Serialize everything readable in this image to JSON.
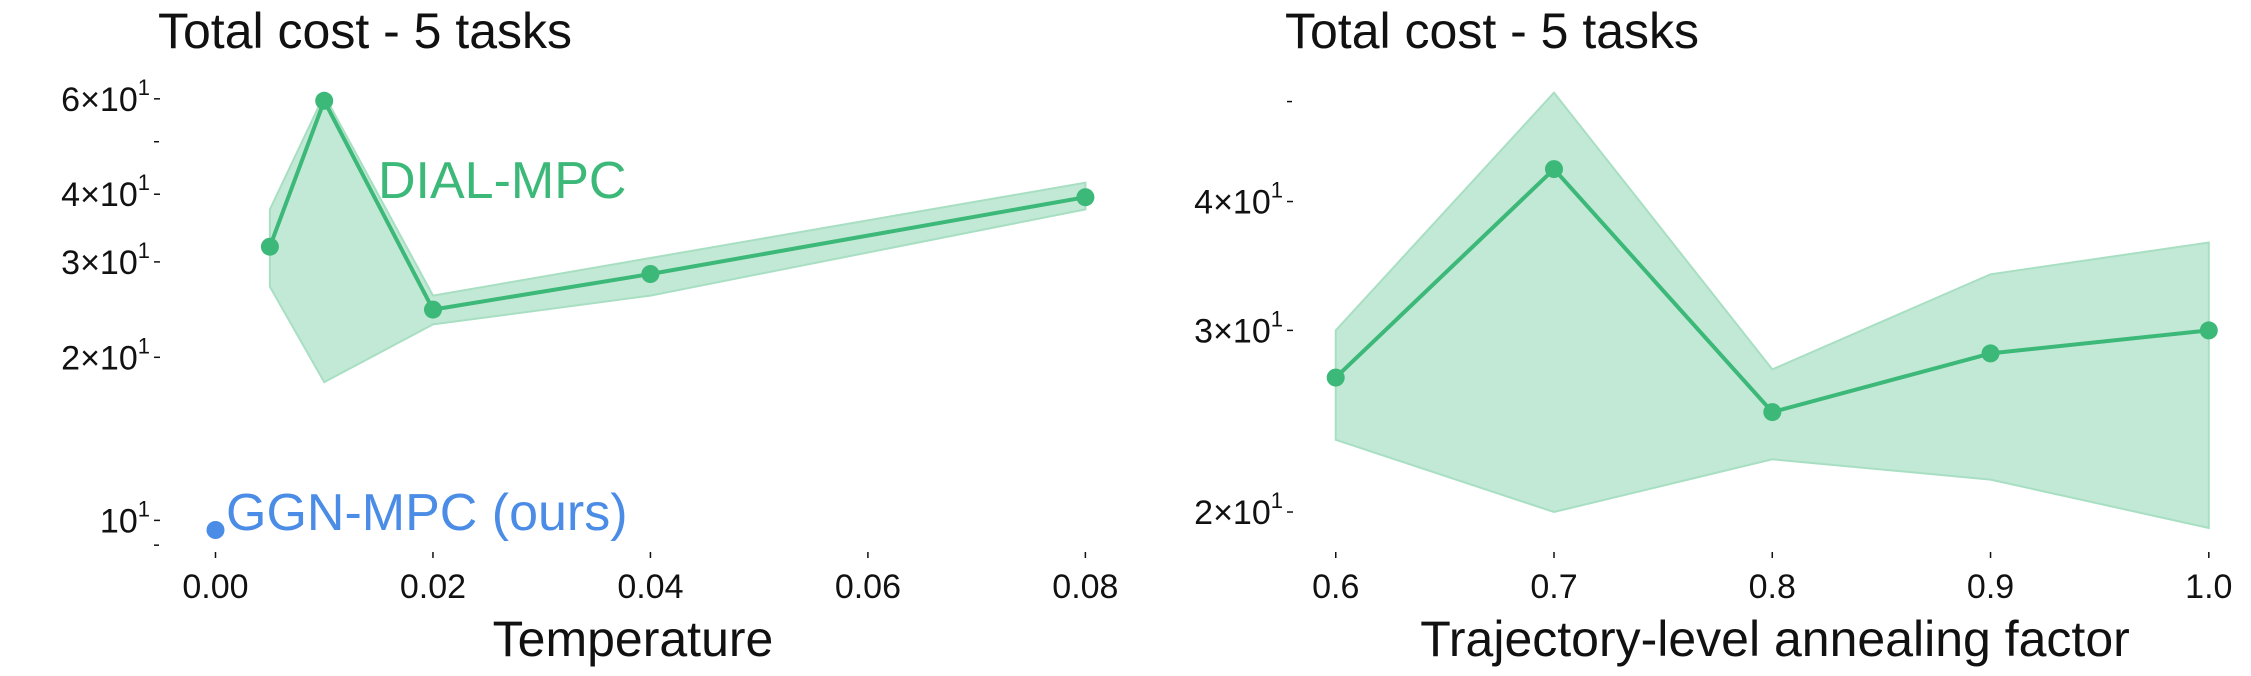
{
  "colors": {
    "dial": "#3cb878",
    "dial_band": "#a8dfc3",
    "ggn": "#4a8ce6",
    "text": "#111111"
  },
  "chart_data": [
    {
      "type": "line",
      "title": "Total cost - 5 tasks",
      "xlabel": "Temperature",
      "ylabel": "",
      "yscale": "log",
      "xlim": [
        -0.004,
        0.083
      ],
      "ylim": [
        9.2,
        65
      ],
      "grid": false,
      "xticks": [
        0.0,
        0.02,
        0.04,
        0.06,
        0.08
      ],
      "xtick_labels": [
        "0.00",
        "0.02",
        "0.04",
        "0.06",
        "0.08"
      ],
      "yticks": [
        {
          "value": 60,
          "mantissa": "6",
          "exp": "1"
        },
        {
          "value": 40,
          "mantissa": "4",
          "exp": "1"
        },
        {
          "value": 30,
          "mantissa": "3",
          "exp": "1"
        },
        {
          "value": 20,
          "mantissa": "2",
          "exp": "1"
        },
        {
          "value": 10,
          "mantissa": "",
          "exp": "1"
        }
      ],
      "yminor_unlabeled": [
        50,
        9
      ],
      "series": [
        {
          "name": "DIAL-MPC",
          "x": [
            0.005,
            0.01,
            0.02,
            0.04,
            0.08
          ],
          "y": [
            32,
            59.5,
            24.5,
            28.5,
            39.5
          ],
          "lower": [
            27,
            18,
            23,
            26,
            37.5
          ],
          "upper": [
            37.5,
            61,
            26,
            30.5,
            42
          ],
          "color": "#3cb878"
        },
        {
          "name": "GGN-MPC (ours)",
          "x": [
            0.0
          ],
          "y": [
            9.6
          ],
          "color": "#4a8ce6"
        }
      ],
      "annotations": [
        "DIAL-MPC",
        "GGN-MPC (ours)"
      ]
    },
    {
      "type": "line",
      "title": "Total cost - 5 tasks",
      "xlabel": "Trajectory-level annealing factor",
      "ylabel": "",
      "yscale": "log",
      "xlim": [
        0.585,
        1.012
      ],
      "ylim": [
        19.0,
        52.0
      ],
      "grid": false,
      "xticks": [
        0.6,
        0.7,
        0.8,
        0.9,
        1.0
      ],
      "xtick_labels": [
        "0.6",
        "0.7",
        "0.8",
        "0.9",
        "1.0"
      ],
      "yticks": [
        {
          "value": 40,
          "mantissa": "4",
          "exp": "1"
        },
        {
          "value": 30,
          "mantissa": "3",
          "exp": "1"
        },
        {
          "value": 20,
          "mantissa": "2",
          "exp": "1"
        }
      ],
      "yminor_unlabeled": [
        50
      ],
      "series": [
        {
          "name": "DIAL-MPC",
          "x": [
            0.6,
            0.7,
            0.8,
            0.9,
            1.0
          ],
          "y": [
            27,
            43,
            25,
            28.5,
            30
          ],
          "lower": [
            23.5,
            20,
            22.5,
            21.5,
            19.3
          ],
          "upper": [
            30,
            51,
            27.5,
            34,
            36.5
          ],
          "color": "#3cb878"
        }
      ]
    }
  ]
}
